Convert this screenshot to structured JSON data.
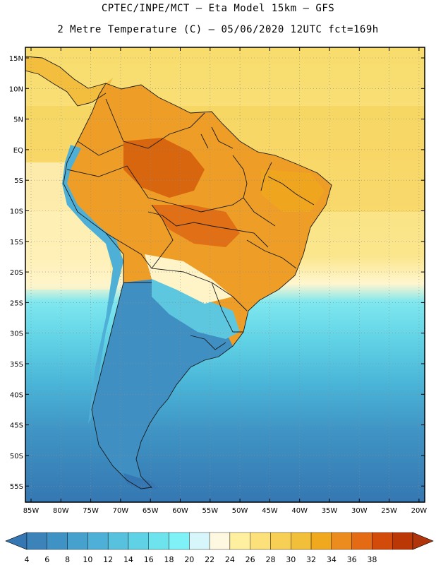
{
  "header": {
    "line1": "CPTEC/INPE/MCT –  Eta Model 15km – GFS",
    "line2": "2 Metre Temperature (C) – 05/06/2020 12UTC fct=169h"
  },
  "map": {
    "lat_labels": [
      "15N",
      "10N",
      "5N",
      "EQ",
      "5S",
      "10S",
      "15S",
      "20S",
      "25S",
      "30S",
      "35S",
      "40S",
      "45S",
      "50S",
      "55S"
    ],
    "lon_labels": [
      "85W",
      "80W",
      "75W",
      "70W",
      "65W",
      "60W",
      "55W",
      "50W",
      "45W",
      "40W",
      "35W",
      "30W",
      "25W",
      "20W"
    ]
  },
  "colorbar": {
    "labels": [
      "4",
      "6",
      "8",
      "10",
      "12",
      "14",
      "16",
      "18",
      "20",
      "22",
      "24",
      "26",
      "28",
      "30",
      "32",
      "34",
      "36",
      "38"
    ],
    "colors": [
      "#3b83b9",
      "#3f92c4",
      "#46a1cd",
      "#4eb0d6",
      "#58c2de",
      "#5fd2e6",
      "#6de3ee",
      "#7ff2f8",
      "#d6f6fb",
      "#fff8e0",
      "#fff0a0",
      "#fce07a",
      "#f7cf55",
      "#f2bf3a",
      "#f0a81e",
      "#ec8c1e",
      "#e46a14",
      "#d24b0a",
      "#bb3706"
    ],
    "low_color": "#3477b3",
    "high_color": "#b0350a"
  }
}
